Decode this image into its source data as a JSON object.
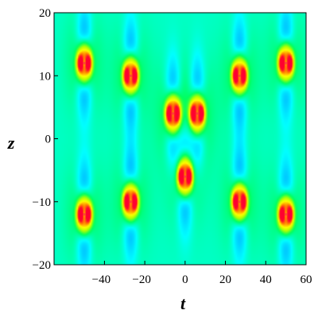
{
  "chart_data": {
    "type": "heatmap",
    "title": "",
    "xlabel": "t",
    "ylabel": "z",
    "xlim": [
      -65,
      60
    ],
    "ylim": [
      -20,
      20
    ],
    "x_ticks": [
      {
        "value": -40,
        "label": "−40"
      },
      {
        "value": -20,
        "label": "−20"
      },
      {
        "value": 0,
        "label": "0"
      },
      {
        "value": 20,
        "label": "20"
      },
      {
        "value": 40,
        "label": "40"
      },
      {
        "value": 60,
        "label": "60"
      }
    ],
    "y_ticks": [
      {
        "value": 20,
        "label": "20"
      },
      {
        "value": 10,
        "label": "10"
      },
      {
        "value": 0,
        "label": "0"
      },
      {
        "value": -10,
        "label": "−10"
      },
      {
        "value": -20,
        "label": "−20"
      }
    ],
    "background_level": 0.42,
    "peaks": [
      {
        "t": -50,
        "z": 12
      },
      {
        "t": -27,
        "z": 10
      },
      {
        "t": -6,
        "z": 4
      },
      {
        "t": 6,
        "z": 4
      },
      {
        "t": 27,
        "z": 10
      },
      {
        "t": 50,
        "z": 12
      },
      {
        "t": -50,
        "z": -12
      },
      {
        "t": -27,
        "z": -10
      },
      {
        "t": 0,
        "z": -6
      },
      {
        "t": 27,
        "z": -10
      },
      {
        "t": 50,
        "z": -12
      }
    ],
    "colormap": [
      "#4a00d8",
      "#3030ff",
      "#00a0ff",
      "#00ffff",
      "#00ff60",
      "#b0ff00",
      "#ffff00",
      "#ff8000",
      "#ff0030"
    ],
    "grid": false,
    "legend": "none"
  }
}
